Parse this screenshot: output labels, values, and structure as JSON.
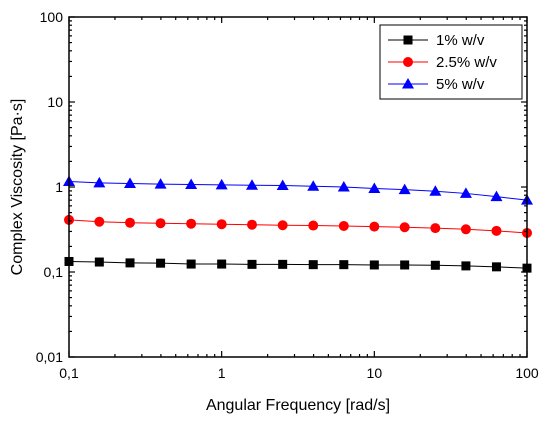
{
  "chart_data": {
    "type": "line",
    "xlabel": "Angular Frequency [rad/s]",
    "ylabel": "Complex Viscosity [Pa·s]",
    "xscale": "log",
    "yscale": "log",
    "xlim": [
      0.1,
      100
    ],
    "ylim": [
      0.01,
      100
    ],
    "x_ticks": [
      {
        "value": 0.1,
        "label": "0,1"
      },
      {
        "value": 1,
        "label": "1"
      },
      {
        "value": 10,
        "label": "10"
      },
      {
        "value": 100,
        "label": "100"
      }
    ],
    "y_ticks": [
      {
        "value": 0.01,
        "label": "0,01"
      },
      {
        "value": 0.1,
        "label": "0,1"
      },
      {
        "value": 1,
        "label": "1"
      },
      {
        "value": 10,
        "label": "10"
      },
      {
        "value": 100,
        "label": "100"
      }
    ],
    "grid": false,
    "legend_position": "top-right",
    "x": [
      0.1,
      0.158,
      0.251,
      0.398,
      0.631,
      1,
      1.58,
      2.51,
      3.98,
      6.31,
      10,
      15.8,
      25.1,
      39.8,
      63.1,
      100
    ],
    "series": [
      {
        "name": "1% w/v",
        "color": "#000000",
        "marker": "square",
        "values": [
          0.133,
          0.131,
          0.128,
          0.127,
          0.124,
          0.124,
          0.123,
          0.123,
          0.122,
          0.122,
          0.121,
          0.121,
          0.12,
          0.118,
          0.115,
          0.111
        ]
      },
      {
        "name": "2.5% w/v",
        "color": "#ff0000",
        "marker": "circle",
        "values": [
          0.41,
          0.39,
          0.38,
          0.375,
          0.37,
          0.365,
          0.36,
          0.355,
          0.352,
          0.348,
          0.342,
          0.336,
          0.328,
          0.318,
          0.305,
          0.288
        ]
      },
      {
        "name": "5% w/v",
        "color": "#0000ff",
        "marker": "triangle",
        "values": [
          1.16,
          1.12,
          1.1,
          1.08,
          1.07,
          1.06,
          1.05,
          1.04,
          1.02,
          1.0,
          0.96,
          0.93,
          0.89,
          0.84,
          0.77,
          0.7
        ]
      }
    ]
  }
}
